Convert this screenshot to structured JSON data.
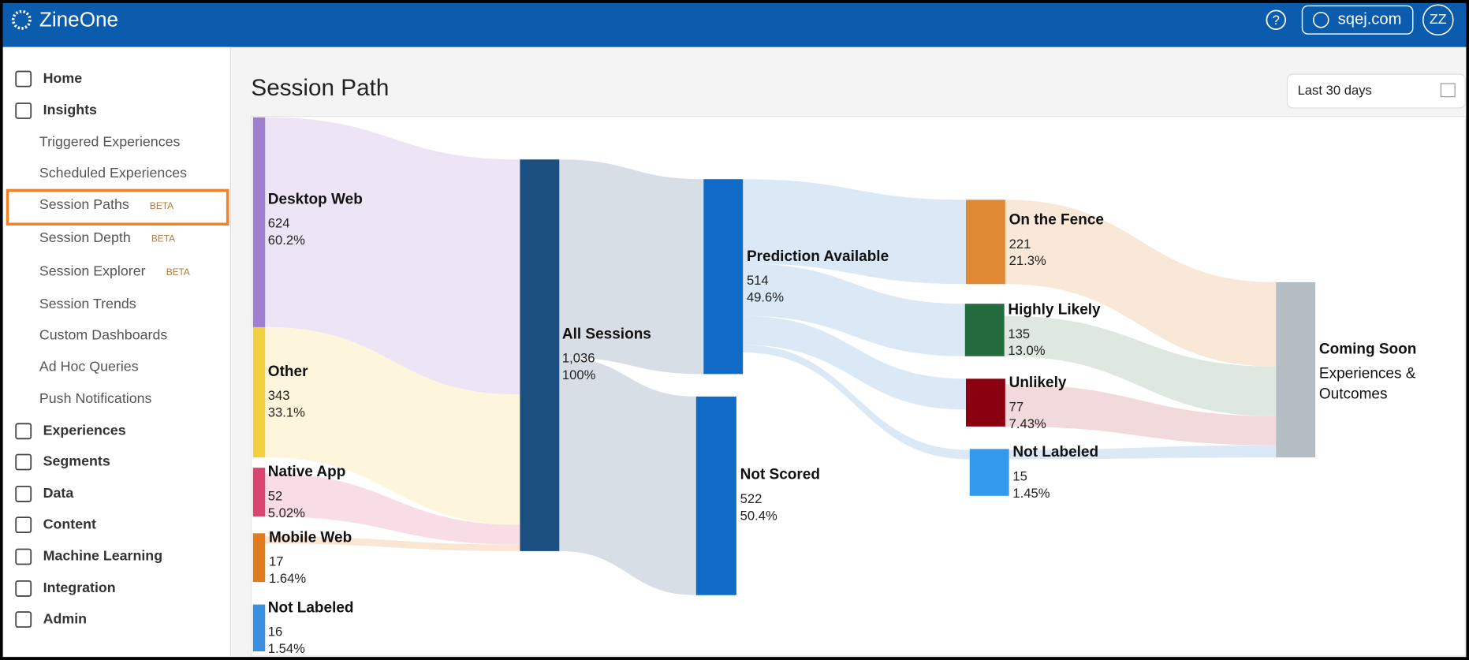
{
  "header": {
    "logo": "ZineOne",
    "help": "?",
    "domain": "sqej.com",
    "avatar": "ZZ"
  },
  "sidebar": {
    "items": [
      {
        "label": "Home"
      },
      {
        "label": "Insights"
      },
      {
        "label": "Triggered Experiences"
      },
      {
        "label": "Scheduled Experiences"
      },
      {
        "label": "Session Paths",
        "badge": "BETA"
      },
      {
        "label": "Session Depth",
        "badge": "BETA"
      },
      {
        "label": "Session Explorer",
        "badge": "BETA"
      },
      {
        "label": "Session Trends"
      },
      {
        "label": "Custom Dashboards"
      },
      {
        "label": "Ad Hoc Queries"
      },
      {
        "label": "Push Notifications"
      },
      {
        "label": "Experiences"
      },
      {
        "label": "Segments"
      },
      {
        "label": "Data"
      },
      {
        "label": "Content"
      },
      {
        "label": "Machine Learning"
      },
      {
        "label": "Integration"
      },
      {
        "label": "Admin"
      }
    ]
  },
  "page": {
    "title": "Session Path",
    "date_range": "Last 30 days"
  },
  "sankey": {
    "nodes": [
      {
        "label": "Desktop Web",
        "count": "624",
        "percent": "60.2%"
      },
      {
        "label": "Other",
        "count": "343",
        "percent": "33.1%"
      },
      {
        "label": "Native App",
        "count": "52",
        "percent": "5.02%"
      },
      {
        "label": "Mobile Web",
        "count": "17",
        "percent": "1.64%"
      },
      {
        "label": "Not Labeled",
        "count": "16",
        "percent": "1.54%"
      },
      {
        "label": "All Sessions",
        "count": "1,036",
        "percent": "100%"
      },
      {
        "label": "Prediction Available",
        "count": "514",
        "percent": "49.6%"
      },
      {
        "label": "Not Scored",
        "count": "522",
        "percent": "50.4%"
      },
      {
        "label": "On the Fence",
        "count": "221",
        "percent": "21.3%"
      },
      {
        "label": "Highly Likely",
        "count": "135",
        "percent": "13.0%"
      },
      {
        "label": "Unlikely",
        "count": "77",
        "percent": "7.43%"
      },
      {
        "label": "Not Labeled",
        "count": "15",
        "percent": "1.45%"
      }
    ],
    "coming_soon": {
      "title": "Coming Soon",
      "subtitle": [
        "Experiences &",
        "Outcomes"
      ]
    }
  }
}
